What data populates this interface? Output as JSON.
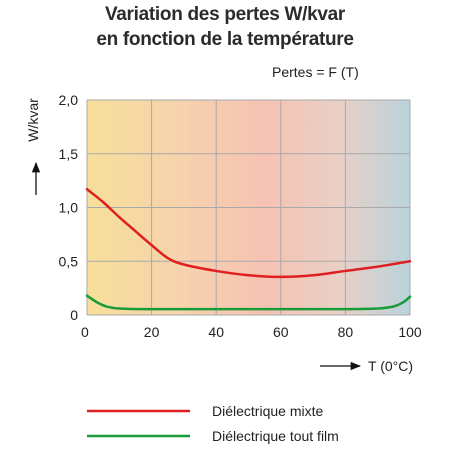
{
  "chart_data": {
    "type": "line",
    "title": "Variation des pertes W/kvar",
    "title_line2": "en fonction de la température",
    "annotation": "Pertes = F (T)",
    "xlabel": "T (0°C)",
    "ylabel": "W/kvar",
    "xlim": [
      0,
      100
    ],
    "ylim": [
      0,
      2.0
    ],
    "x_ticks": [
      0,
      20,
      40,
      60,
      80,
      100
    ],
    "x_tick_labels": [
      "0",
      "20",
      "40",
      "60",
      "80",
      "100"
    ],
    "y_ticks": [
      0,
      0.5,
      1.0,
      1.5,
      2.0
    ],
    "y_tick_labels": [
      "0",
      "0,5",
      "1,0",
      "1,5",
      "2,0"
    ],
    "grid": true,
    "background": "gradient yellow-to-blue",
    "legend_placement": "bottom",
    "series": [
      {
        "name": "Diélectrique mixte",
        "color": "#e02020",
        "x": [
          0,
          5,
          10,
          15,
          20,
          25,
          30,
          40,
          50,
          60,
          70,
          80,
          90,
          100
        ],
        "y": [
          1.17,
          1.05,
          0.91,
          0.78,
          0.65,
          0.53,
          0.47,
          0.41,
          0.37,
          0.355,
          0.37,
          0.41,
          0.45,
          0.5
        ]
      },
      {
        "name": "Diélectrique tout film",
        "color": "#1a9b3a",
        "x": [
          0,
          3,
          6,
          10,
          20,
          40,
          60,
          80,
          90,
          95,
          98,
          100
        ],
        "y": [
          0.18,
          0.12,
          0.08,
          0.06,
          0.055,
          0.055,
          0.055,
          0.055,
          0.06,
          0.08,
          0.12,
          0.17
        ]
      }
    ]
  }
}
